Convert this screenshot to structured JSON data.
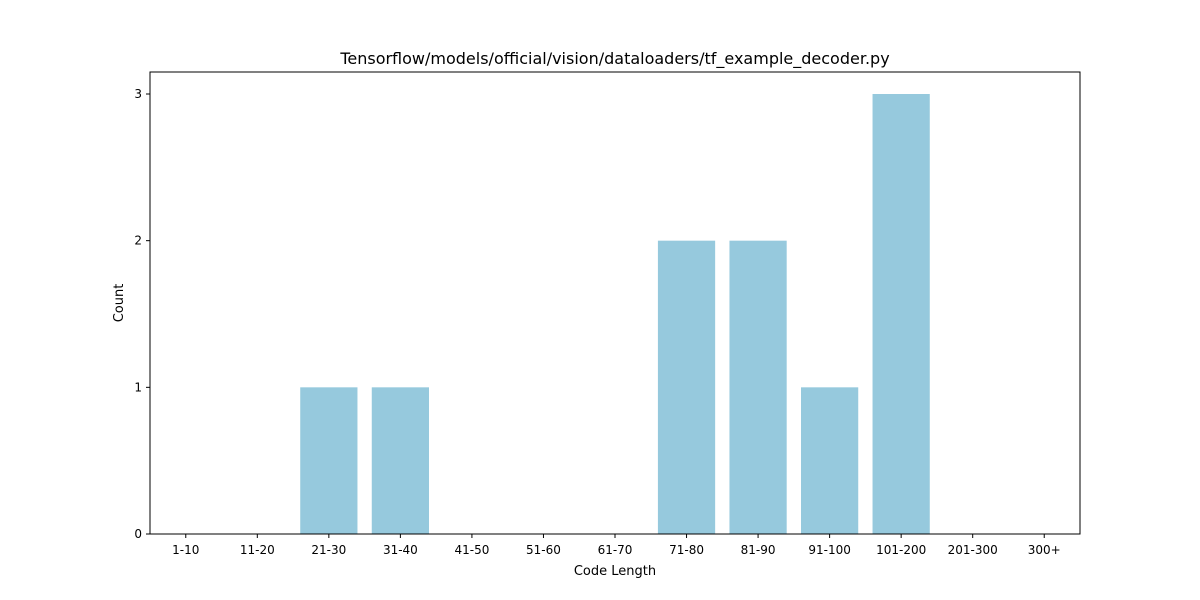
{
  "chart_data": {
    "type": "bar",
    "title": "Tensorflow/models/official/vision/dataloaders/tf_example_decoder.py",
    "xlabel": "Code Length",
    "ylabel": "Count",
    "categories": [
      "1-10",
      "11-20",
      "21-30",
      "31-40",
      "41-50",
      "51-60",
      "61-70",
      "71-80",
      "81-90",
      "91-100",
      "101-200",
      "201-300",
      "300+"
    ],
    "values": [
      0,
      0,
      1,
      1,
      0,
      0,
      0,
      2,
      2,
      1,
      3,
      0,
      0
    ],
    "yticks": [
      0,
      1,
      2,
      3
    ],
    "ylim": [
      0,
      3.15
    ],
    "bar_color": "#96c9dd",
    "grid": false,
    "legend": false
  }
}
